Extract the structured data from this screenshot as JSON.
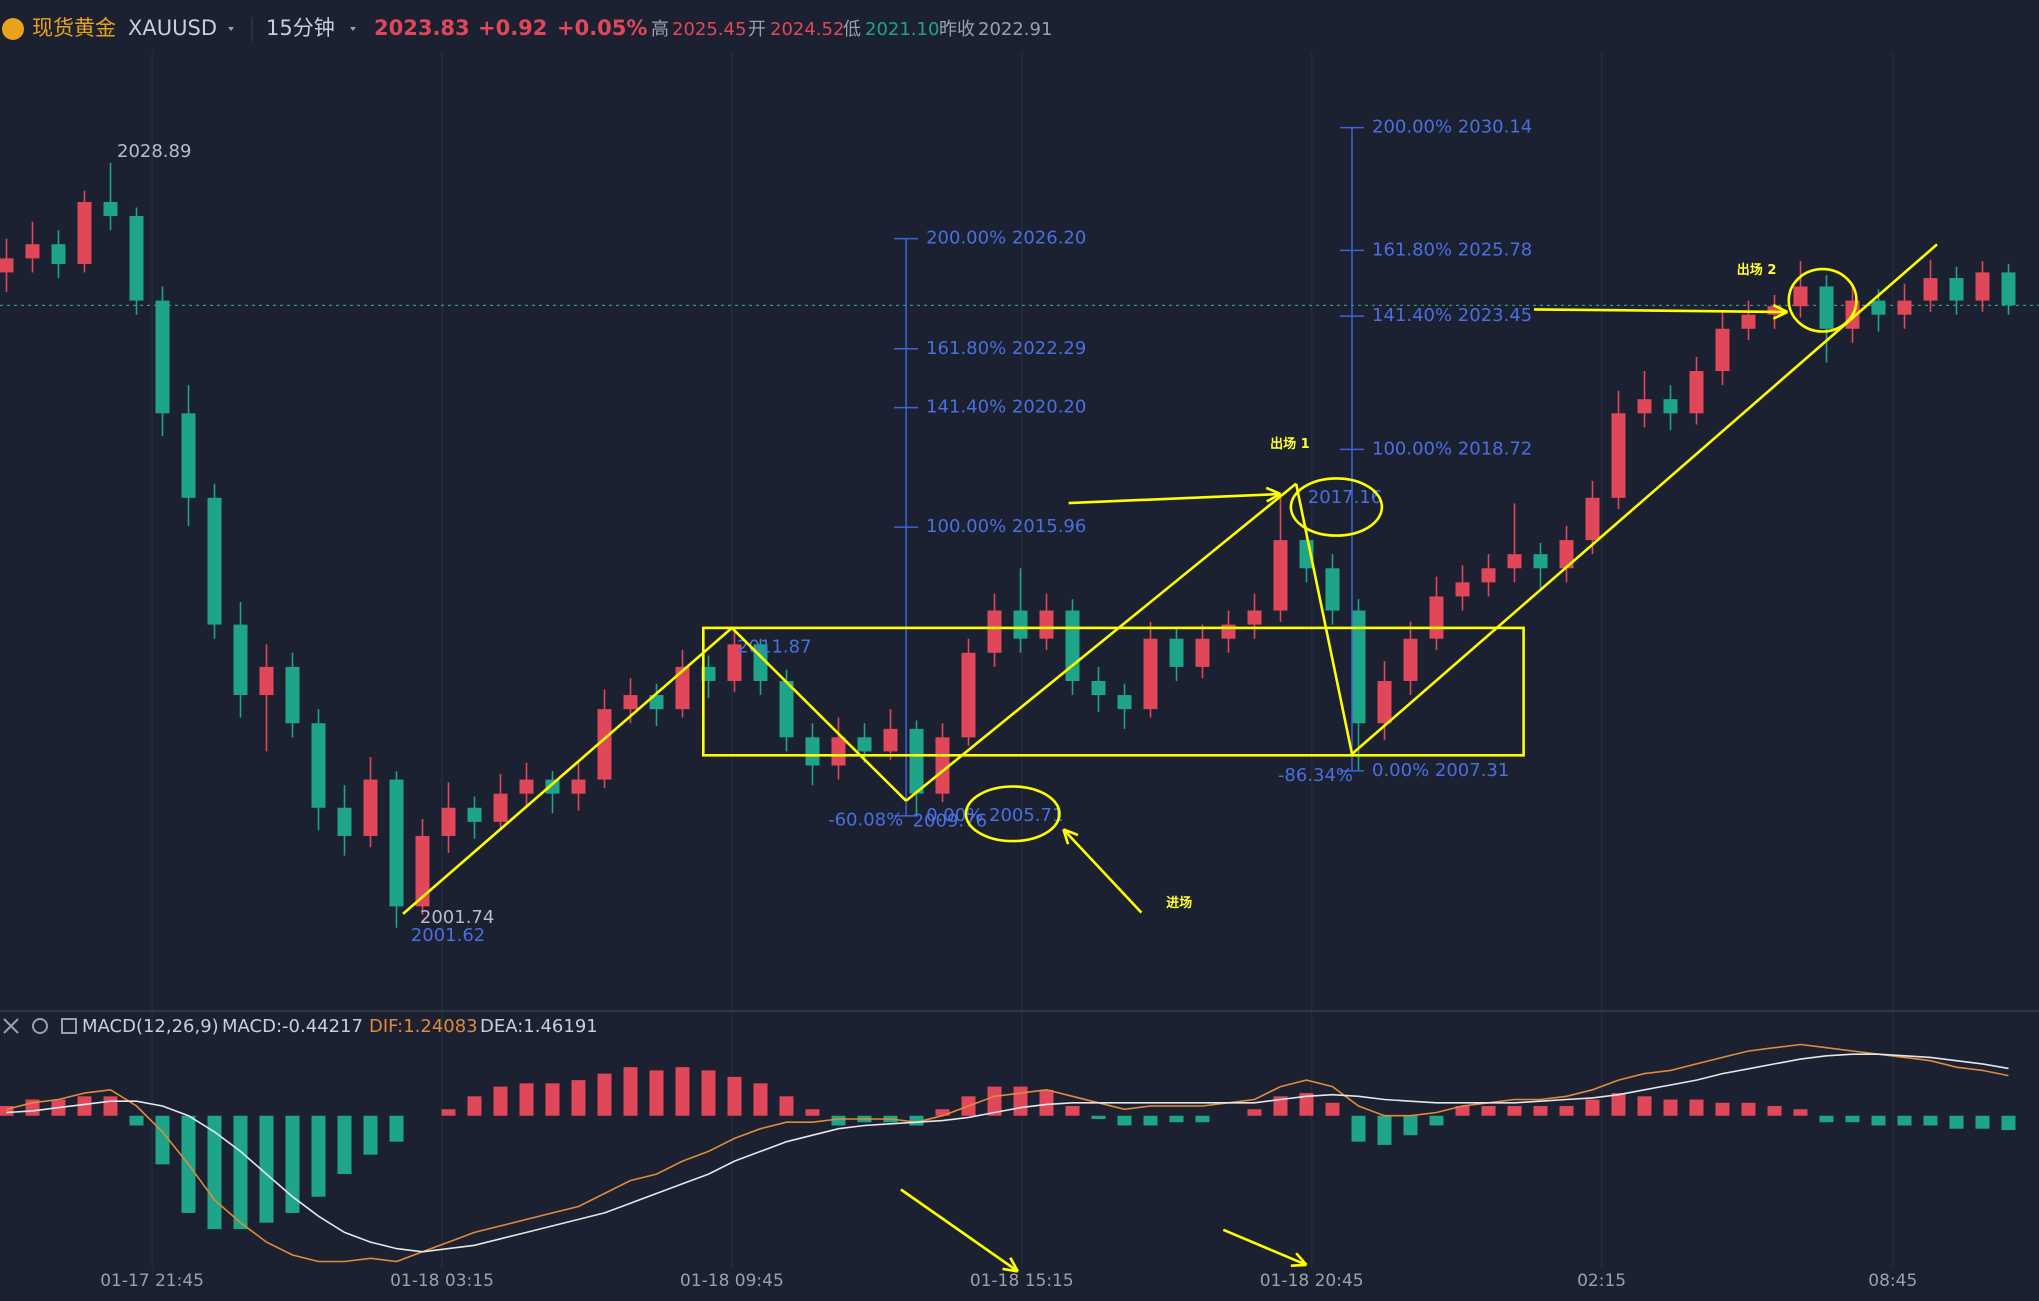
{
  "header": {
    "name": "现货黄金",
    "symbol": "XAUUSD",
    "period": "15分钟",
    "price": 2023.83,
    "change": "+0.92",
    "change_pct": "+0.05%",
    "high_label": "高",
    "high": "2025.45",
    "open_label": "开",
    "open": "2024.52",
    "low_label": "低",
    "low": "2021.10",
    "prev_close_label": "昨收",
    "prev_close": "2022.91"
  },
  "chart_data": {
    "type": "candlestick",
    "colors": {
      "up": "#e0485a",
      "down": "#1ea589",
      "fib": "#3d64d8"
    },
    "ylim": [
      1999,
      2033
    ],
    "xticks": [
      {
        "value": 5.6,
        "label": "01-17 21:45"
      },
      {
        "value": 16.75,
        "label": "01-18 03:15"
      },
      {
        "value": 27.9,
        "label": "01-18 09:45"
      },
      {
        "value": 39.05,
        "label": "01-18 15:15"
      },
      {
        "value": 50.2,
        "label": "01-18 20:45"
      },
      {
        "value": 61.35,
        "label": "02:15"
      },
      {
        "value": 72.55,
        "label": "08:45"
      }
    ],
    "candles": [
      [
        2025.0,
        2026.2,
        2024.3,
        2025.5
      ],
      [
        2025.5,
        2026.8,
        2025.0,
        2026.0
      ],
      [
        2026.0,
        2026.5,
        2024.8,
        2025.3
      ],
      [
        2025.3,
        2027.9,
        2025.0,
        2027.5
      ],
      [
        2027.5,
        2028.89,
        2026.5,
        2027.0
      ],
      [
        2027.0,
        2027.3,
        2023.5,
        2024.0
      ],
      [
        2024.0,
        2024.5,
        2019.2,
        2020.0
      ],
      [
        2020.0,
        2021.0,
        2016.0,
        2017.0
      ],
      [
        2017.0,
        2017.5,
        2012.0,
        2012.5
      ],
      [
        2012.5,
        2013.3,
        2009.2,
        2010.0
      ],
      [
        2010.0,
        2011.8,
        2008.0,
        2011.0
      ],
      [
        2011.0,
        2011.5,
        2008.5,
        2009.0
      ],
      [
        2009.0,
        2009.5,
        2005.2,
        2006.0
      ],
      [
        2006.0,
        2006.8,
        2004.3,
        2005.0
      ],
      [
        2005.0,
        2007.8,
        2004.6,
        2007.0
      ],
      [
        2007.0,
        2007.3,
        2001.74,
        2002.5
      ],
      [
        2002.5,
        2005.6,
        2002.2,
        2005.0
      ],
      [
        2005.0,
        2006.9,
        2004.4,
        2006.0
      ],
      [
        2006.0,
        2006.4,
        2004.9,
        2005.5
      ],
      [
        2005.5,
        2007.2,
        2005.2,
        2006.5
      ],
      [
        2006.5,
        2007.6,
        2006.0,
        2007.0
      ],
      [
        2007.0,
        2007.3,
        2005.8,
        2006.5
      ],
      [
        2006.5,
        2007.6,
        2005.9,
        2007.0
      ],
      [
        2007.0,
        2010.2,
        2006.7,
        2009.5
      ],
      [
        2009.5,
        2010.6,
        2009.0,
        2010.0
      ],
      [
        2010.0,
        2010.4,
        2008.9,
        2009.5
      ],
      [
        2009.5,
        2011.6,
        2009.2,
        2011.0
      ],
      [
        2011.0,
        2011.4,
        2009.9,
        2010.5
      ],
      [
        2010.5,
        2012.3,
        2010.1,
        2011.8
      ],
      [
        2011.8,
        2012.0,
        2010.0,
        2010.5
      ],
      [
        2010.5,
        2010.9,
        2008.0,
        2008.5
      ],
      [
        2008.5,
        2009.0,
        2006.8,
        2007.5
      ],
      [
        2007.5,
        2009.2,
        2007.0,
        2008.5
      ],
      [
        2008.5,
        2009.0,
        2007.6,
        2008.0
      ],
      [
        2008.0,
        2009.5,
        2007.7,
        2008.8
      ],
      [
        2008.8,
        2009.1,
        2005.71,
        2006.5
      ],
      [
        2006.5,
        2009.0,
        2006.2,
        2008.5
      ],
      [
        2008.5,
        2012.0,
        2008.2,
        2011.5
      ],
      [
        2011.5,
        2013.6,
        2011.0,
        2013.0
      ],
      [
        2013.0,
        2014.5,
        2011.5,
        2012.0
      ],
      [
        2012.0,
        2013.6,
        2011.6,
        2013.0
      ],
      [
        2013.0,
        2013.4,
        2010.0,
        2010.5
      ],
      [
        2010.5,
        2011.0,
        2009.4,
        2010.0
      ],
      [
        2010.0,
        2010.4,
        2008.8,
        2009.5
      ],
      [
        2009.5,
        2012.6,
        2009.2,
        2012.0
      ],
      [
        2012.0,
        2012.4,
        2010.5,
        2011.0
      ],
      [
        2011.0,
        2012.5,
        2010.6,
        2012.0
      ],
      [
        2012.0,
        2013.0,
        2011.5,
        2012.5
      ],
      [
        2012.5,
        2013.6,
        2012.0,
        2013.0
      ],
      [
        2013.0,
        2017.16,
        2012.6,
        2015.5
      ],
      [
        2015.5,
        2016.0,
        2014.0,
        2014.5
      ],
      [
        2014.5,
        2015.0,
        2012.5,
        2013.0
      ],
      [
        2013.0,
        2013.4,
        2007.31,
        2009.0
      ],
      [
        2009.0,
        2011.2,
        2008.4,
        2010.5
      ],
      [
        2010.5,
        2012.6,
        2010.0,
        2012.0
      ],
      [
        2012.0,
        2014.2,
        2011.6,
        2013.5
      ],
      [
        2013.5,
        2014.6,
        2013.0,
        2014.0
      ],
      [
        2014.0,
        2015.0,
        2013.5,
        2014.5
      ],
      [
        2014.5,
        2016.8,
        2014.0,
        2015.0
      ],
      [
        2015.0,
        2015.4,
        2013.8,
        2014.5
      ],
      [
        2014.5,
        2016.0,
        2014.0,
        2015.5
      ],
      [
        2015.5,
        2017.6,
        2015.0,
        2017.0
      ],
      [
        2017.0,
        2020.8,
        2016.6,
        2020.0
      ],
      [
        2020.0,
        2021.5,
        2019.5,
        2020.5
      ],
      [
        2020.5,
        2021.0,
        2019.4,
        2020.0
      ],
      [
        2020.0,
        2022.0,
        2019.6,
        2021.5
      ],
      [
        2021.5,
        2023.6,
        2021.0,
        2023.0
      ],
      [
        2023.0,
        2024.0,
        2022.6,
        2023.5
      ],
      [
        2023.5,
        2024.2,
        2023.0,
        2023.8
      ],
      [
        2023.8,
        2025.4,
        2023.4,
        2024.5
      ],
      [
        2024.5,
        2024.9,
        2021.8,
        2023.0
      ],
      [
        2023.0,
        2024.6,
        2022.5,
        2024.0
      ],
      [
        2024.0,
        2024.4,
        2022.9,
        2023.5
      ],
      [
        2023.5,
        2024.6,
        2023.0,
        2024.0
      ],
      [
        2024.0,
        2025.45,
        2023.6,
        2024.8
      ],
      [
        2024.8,
        2025.2,
        2023.5,
        2024.0
      ],
      [
        2024.0,
        2025.4,
        2023.6,
        2025.0
      ],
      [
        2025.0,
        2025.3,
        2023.5,
        2023.83
      ]
    ],
    "fib_sets": [
      {
        "levels": [
          {
            "text": "200.00% 2026.20",
            "value": 2026.2
          },
          {
            "text": "161.80% 2022.29",
            "value": 2022.29
          },
          {
            "text": "141.40% 2020.20",
            "value": 2020.2
          },
          {
            "text": "100.00% 2015.96",
            "value": 2015.96
          },
          {
            "text": "0.00% 2005.71",
            "value": 2005.71
          }
        ]
      },
      {
        "levels": [
          {
            "text": "200.00% 2030.14",
            "value": 2030.14
          },
          {
            "text": "161.80% 2025.78",
            "value": 2025.78
          },
          {
            "text": "141.40% 2023.45",
            "value": 2023.45
          },
          {
            "text": "100.00% 2018.72",
            "value": 2018.72
          },
          {
            "text": "0.00% 2007.31",
            "value": 2007.31
          }
        ]
      }
    ],
    "labels": [
      "2028.89",
      "2001.74",
      "2001.62",
      "2011.87",
      "-60.08%",
      "2009.76",
      "2017.16",
      "-86.34%"
    ],
    "annotations": [
      "出场 1",
      "出场 2",
      "进场"
    ]
  },
  "macd": {
    "title": "MACD(12,26,9)",
    "macd_label": "MACD:-0.44217",
    "dif_label": "DIF:1.24083",
    "dea_label": "DEA:1.46191",
    "dif_color": "#e08a3c",
    "dea_color": "#e6e6e6",
    "ylim": [
      -4.7,
      2.4
    ],
    "dif": [
      0.2,
      0.4,
      0.5,
      0.7,
      0.8,
      0.3,
      -0.5,
      -1.5,
      -2.6,
      -3.3,
      -3.9,
      -4.3,
      -4.5,
      -4.5,
      -4.4,
      -4.5,
      -4.2,
      -3.9,
      -3.6,
      -3.4,
      -3.2,
      -3.0,
      -2.8,
      -2.4,
      -2.0,
      -1.8,
      -1.4,
      -1.1,
      -0.7,
      -0.4,
      -0.2,
      -0.2,
      -0.1,
      -0.1,
      -0.1,
      -0.2,
      0,
      0.3,
      0.6,
      0.7,
      0.8,
      0.6,
      0.4,
      0.2,
      0.3,
      0.3,
      0.3,
      0.4,
      0.5,
      0.9,
      1.1,
      0.9,
      0.3,
      0,
      0,
      0.1,
      0.3,
      0.4,
      0.5,
      0.5,
      0.6,
      0.8,
      1.1,
      1.3,
      1.4,
      1.6,
      1.8,
      2.0,
      2.1,
      2.2,
      2.1,
      2.0,
      1.9,
      1.8,
      1.7,
      1.5,
      1.4,
      1.24083
    ],
    "dea": [
      0.1,
      0.15,
      0.25,
      0.35,
      0.45,
      0.45,
      0.3,
      0,
      -0.5,
      -1.1,
      -1.8,
      -2.5,
      -3.1,
      -3.6,
      -3.9,
      -4.1,
      -4.2,
      -4.1,
      -4.0,
      -3.8,
      -3.6,
      -3.4,
      -3.2,
      -3.0,
      -2.7,
      -2.4,
      -2.1,
      -1.8,
      -1.4,
      -1.1,
      -0.8,
      -0.6,
      -0.4,
      -0.3,
      -0.25,
      -0.2,
      -0.15,
      -0.05,
      0.1,
      0.25,
      0.35,
      0.4,
      0.4,
      0.4,
      0.4,
      0.4,
      0.4,
      0.4,
      0.4,
      0.5,
      0.6,
      0.65,
      0.6,
      0.5,
      0.45,
      0.4,
      0.4,
      0.4,
      0.4,
      0.45,
      0.5,
      0.55,
      0.65,
      0.8,
      0.95,
      1.1,
      1.3,
      1.45,
      1.6,
      1.75,
      1.85,
      1.9,
      1.9,
      1.85,
      1.8,
      1.7,
      1.6,
      1.46191
    ],
    "hist": [
      0.3,
      0.5,
      0.5,
      0.6,
      0.6,
      -0.3,
      -1.5,
      -3,
      -3.5,
      -3.5,
      -3.3,
      -3,
      -2.5,
      -1.8,
      -1.2,
      -0.8,
      0,
      0.2,
      0.6,
      0.9,
      1,
      1,
      1.1,
      1.3,
      1.5,
      1.4,
      1.5,
      1.4,
      1.2,
      1,
      0.6,
      0.2,
      -0.3,
      -0.2,
      -0.2,
      -0.3,
      0.2,
      0.6,
      0.9,
      0.9,
      0.8,
      0.3,
      -0.1,
      -0.3,
      -0.3,
      -0.2,
      -0.2,
      0,
      0.2,
      0.6,
      0.7,
      0.4,
      -0.8,
      -0.9,
      -0.6,
      -0.3,
      0.3,
      0.3,
      0.3,
      0.3,
      0.3,
      0.5,
      0.7,
      0.6,
      0.5,
      0.5,
      0.4,
      0.4,
      0.3,
      0.2,
      -0.2,
      -0.2,
      -0.3,
      -0.3,
      -0.3,
      -0.4,
      -0.4,
      -0.44217
    ]
  }
}
